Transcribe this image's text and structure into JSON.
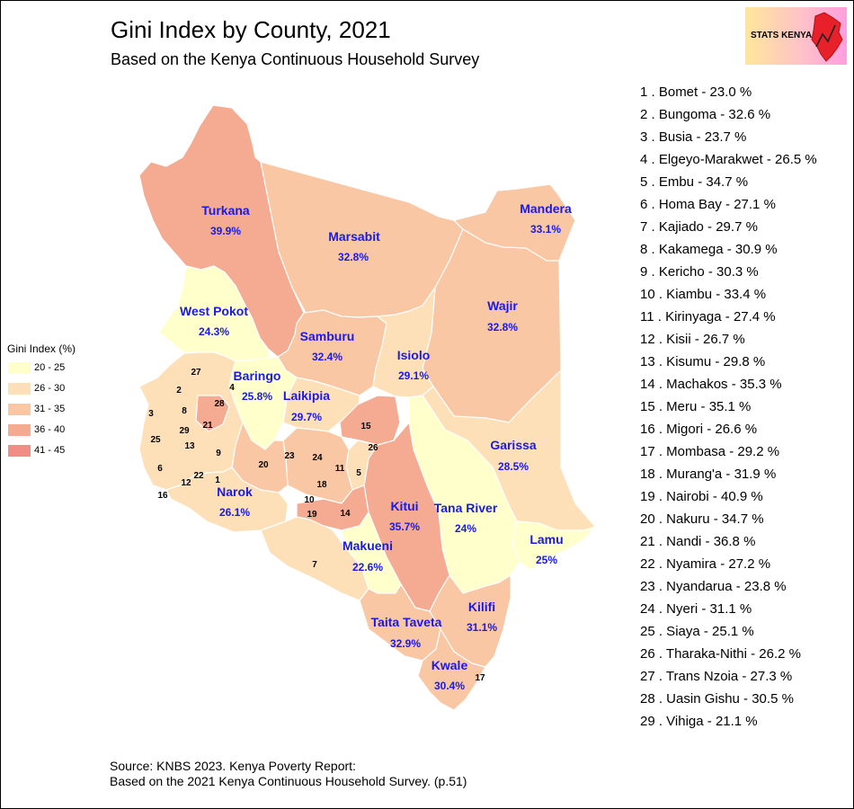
{
  "title": "Gini Index by County, 2021",
  "subtitle": "Based on the Kenya Continuous Household Survey",
  "logo": {
    "text": "STATS KENYA",
    "icon": "kenya-map-chart-icon"
  },
  "legend": {
    "title": "Gini Index (%)",
    "classes": [
      {
        "label": "20 - 25",
        "color": "#ffffcc"
      },
      {
        "label": "26 - 30",
        "color": "#fde0b8"
      },
      {
        "label": "31 - 35",
        "color": "#f9c7a4"
      },
      {
        "label": "36 - 40",
        "color": "#f5ab92"
      },
      {
        "label": "41 - 45",
        "color": "#f28d85"
      }
    ]
  },
  "map_labels": {
    "turkana": {
      "name": "Turkana",
      "value": "39.9%"
    },
    "marsabit": {
      "name": "Marsabit",
      "value": "32.8%"
    },
    "mandera": {
      "name": "Mandera",
      "value": "33.1%"
    },
    "wajir": {
      "name": "Wajir",
      "value": "32.8%"
    },
    "west_pokot": {
      "name": "West Pokot",
      "value": "24.3%"
    },
    "samburu": {
      "name": "Samburu",
      "value": "32.4%"
    },
    "isiolo": {
      "name": "Isiolo",
      "value": "29.1%"
    },
    "baringo": {
      "name": "Baringo",
      "value": "25.8%"
    },
    "laikipia": {
      "name": "Laikipia",
      "value": "29.7%"
    },
    "garissa": {
      "name": "Garissa",
      "value": "28.5%"
    },
    "narok": {
      "name": "Narok",
      "value": "26.1%"
    },
    "kitui": {
      "name": "Kitui",
      "value": "35.7%"
    },
    "tana_river": {
      "name": "Tana River",
      "value": "24%"
    },
    "lamu": {
      "name": "Lamu",
      "value": "25%"
    },
    "makueni": {
      "name": "Makueni",
      "value": "22.6%"
    },
    "kilifi": {
      "name": "Kilifi",
      "value": "31.1%"
    },
    "taita_taveta": {
      "name": "Taita Taveta",
      "value": "32.9%"
    },
    "kwale": {
      "name": "Kwale",
      "value": "30.4%"
    }
  },
  "map_numbers": [
    "27",
    "2",
    "4",
    "28",
    "8",
    "3",
    "21",
    "25",
    "29",
    "13",
    "9",
    "6",
    "12",
    "22",
    "1",
    "16",
    "20",
    "23",
    "24",
    "18",
    "11",
    "5",
    "10",
    "19",
    "14",
    "15",
    "26",
    "7",
    "17"
  ],
  "county_list": [
    "1 . Bomet - 23.0 %",
    "2 . Bungoma - 32.6 %",
    "3 . Busia - 23.7 %",
    "4 . Elgeyo-Marakwet - 26.5 %",
    "5 . Embu - 34.7 %",
    "6 . Homa Bay - 27.1 %",
    "7 . Kajiado - 29.7 %",
    "8 . Kakamega - 30.9 %",
    "9 . Kericho - 30.3 %",
    "10 . Kiambu - 33.4 %",
    "11 . Kirinyaga - 27.4 %",
    "12 . Kisii - 26.7 %",
    "13 . Kisumu - 29.8 %",
    "14 . Machakos - 35.3 %",
    "15 . Meru - 35.1 %",
    "16 . Migori - 26.6 %",
    "17 . Mombasa - 29.2 %",
    "18 . Murang'a - 31.9 %",
    "19 . Nairobi - 40.9 %",
    "20 . Nakuru - 34.7 %",
    "21 . Nandi - 36.8 %",
    "22 . Nyamira - 27.2 %",
    "23 . Nyandarua - 23.8 %",
    "24 . Nyeri - 31.1 %",
    "25 . Siaya - 25.1 %",
    "26 . Tharaka-Nithi - 26.2 %",
    "27 . Trans Nzoia - 27.3 %",
    "28 . Uasin Gishu - 30.5 %",
    "29 . Vihiga - 21.1 %"
  ],
  "source_line1": "Source: KNBS 2023. Kenya Poverty Report:",
  "source_line2": "Based on the 2021 Kenya Continuous Household Survey. (p.51)"
}
